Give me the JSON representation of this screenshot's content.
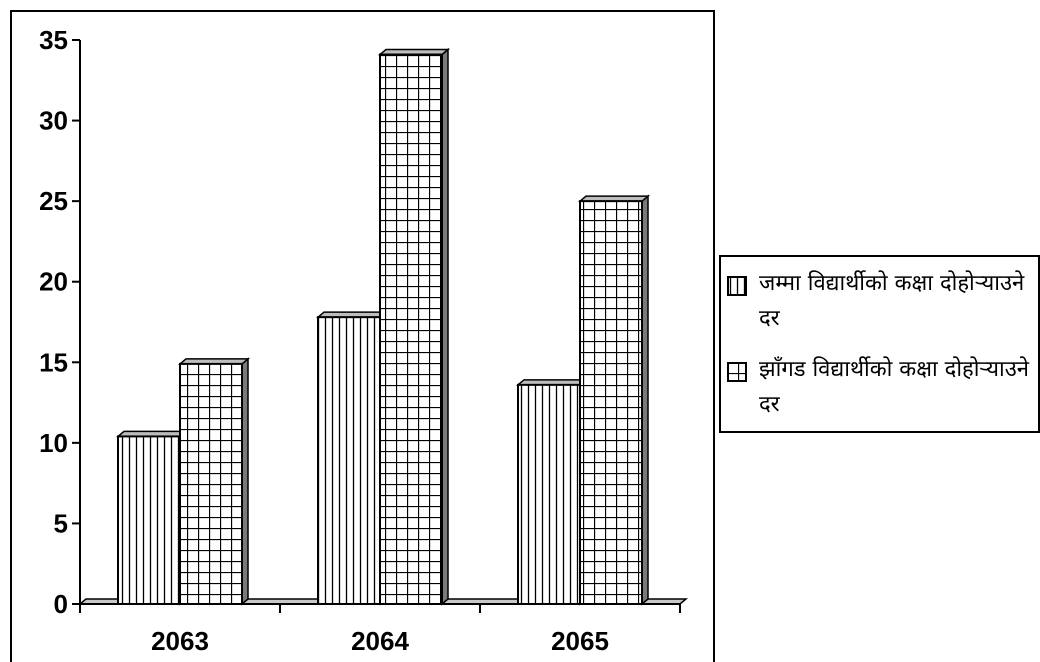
{
  "chart_data": {
    "type": "bar",
    "categories": [
      "2063",
      "2064",
      "2065"
    ],
    "series": [
      {
        "name": "जम्मा विद्यार्थीको कक्षा दोहोऱ्याउने दर",
        "values": [
          10.4,
          17.8,
          13.6
        ],
        "pattern": "vertical-lines"
      },
      {
        "name": "झाँगड विद्यार्थीको कक्षा दोहोऱ्याउने दर",
        "values": [
          14.9,
          34.1,
          25.0
        ],
        "pattern": "grid"
      }
    ],
    "yticks": [
      "0",
      "5",
      "10",
      "15",
      "20",
      "25",
      "30",
      "35"
    ],
    "ylim": [
      0,
      35
    ],
    "title": "",
    "xlabel": "",
    "ylabel": "",
    "legend_position": "right",
    "grid": false,
    "colors": {
      "bar_fill": "#ffffff",
      "stroke": "#000000"
    }
  }
}
